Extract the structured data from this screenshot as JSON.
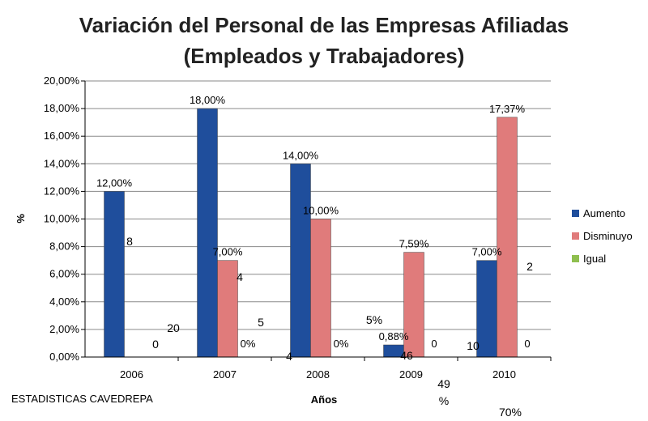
{
  "chart_data": {
    "type": "bar",
    "title": [
      "Variación del Personal de las Empresas Afiliadas",
      "(Empleados y Trabajadores)"
    ],
    "xlabel": "Años",
    "ylabel": "%",
    "categories": [
      "2006",
      "2007",
      "2008",
      "2009",
      "2010"
    ],
    "ylim": [
      0,
      20
    ],
    "yticks": [
      "0,00%",
      "2,00%",
      "4,00%",
      "6,00%",
      "8,00%",
      "10,00%",
      "12,00%",
      "14,00%",
      "16,00%",
      "18,00%",
      "20,00%"
    ],
    "series": [
      {
        "name": "Aumento",
        "color": "#1f4e9c",
        "values": [
          12.0,
          18.0,
          14.0,
          0.88,
          7.0
        ],
        "labels": [
          "12,00%",
          "18,00%",
          "14,00%",
          "0,88%",
          "7,00%"
        ]
      },
      {
        "name": "Disminuyo",
        "color": "#e07b7b",
        "values": [
          0,
          7.0,
          10.0,
          7.59,
          17.37
        ],
        "labels": [
          "",
          "7,00%",
          "10,00%",
          "7,59%",
          "17,37%"
        ]
      },
      {
        "name": "Igual",
        "color": "#8fbf4f",
        "values": [
          0,
          0,
          0,
          0,
          0
        ],
        "labels": [
          "",
          "0%",
          "0%",
          "0",
          "0"
        ]
      }
    ],
    "legend_position": "right",
    "grid": true,
    "stray_labels": [
      "8",
      "0",
      "20",
      "4",
      "5",
      "4",
      "5%",
      "46",
      "49",
      "%",
      "10",
      "2",
      "70%"
    ]
  },
  "source": "ESTADISTICAS CAVEDREPA"
}
